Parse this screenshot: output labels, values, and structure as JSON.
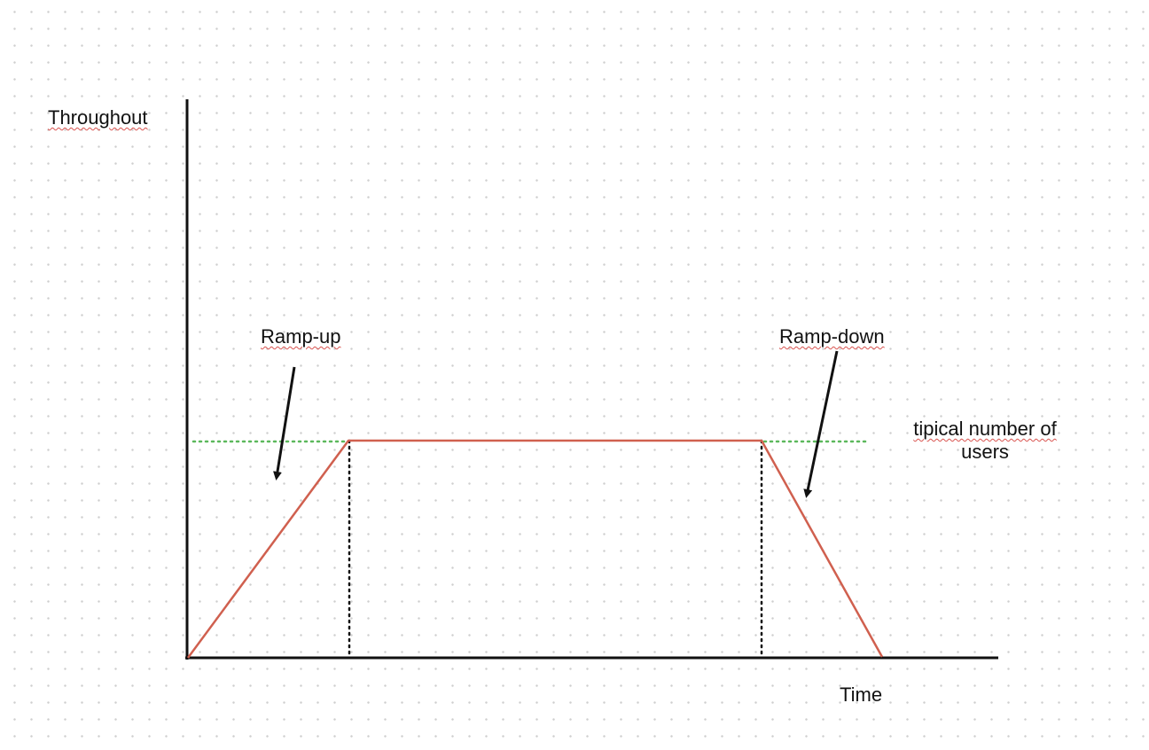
{
  "labels": {
    "y_axis": "Throughout",
    "x_axis": "Time",
    "ramp_up": "Ramp-up",
    "ramp_down": "Ramp-down",
    "typical_line1": "tipical number of",
    "typical_line2": "users"
  },
  "colors": {
    "axis": "#111111",
    "load_line": "#d0604f",
    "typical_line": "#5cb85c",
    "markers": "#111111",
    "arrows": "#111111"
  }
}
